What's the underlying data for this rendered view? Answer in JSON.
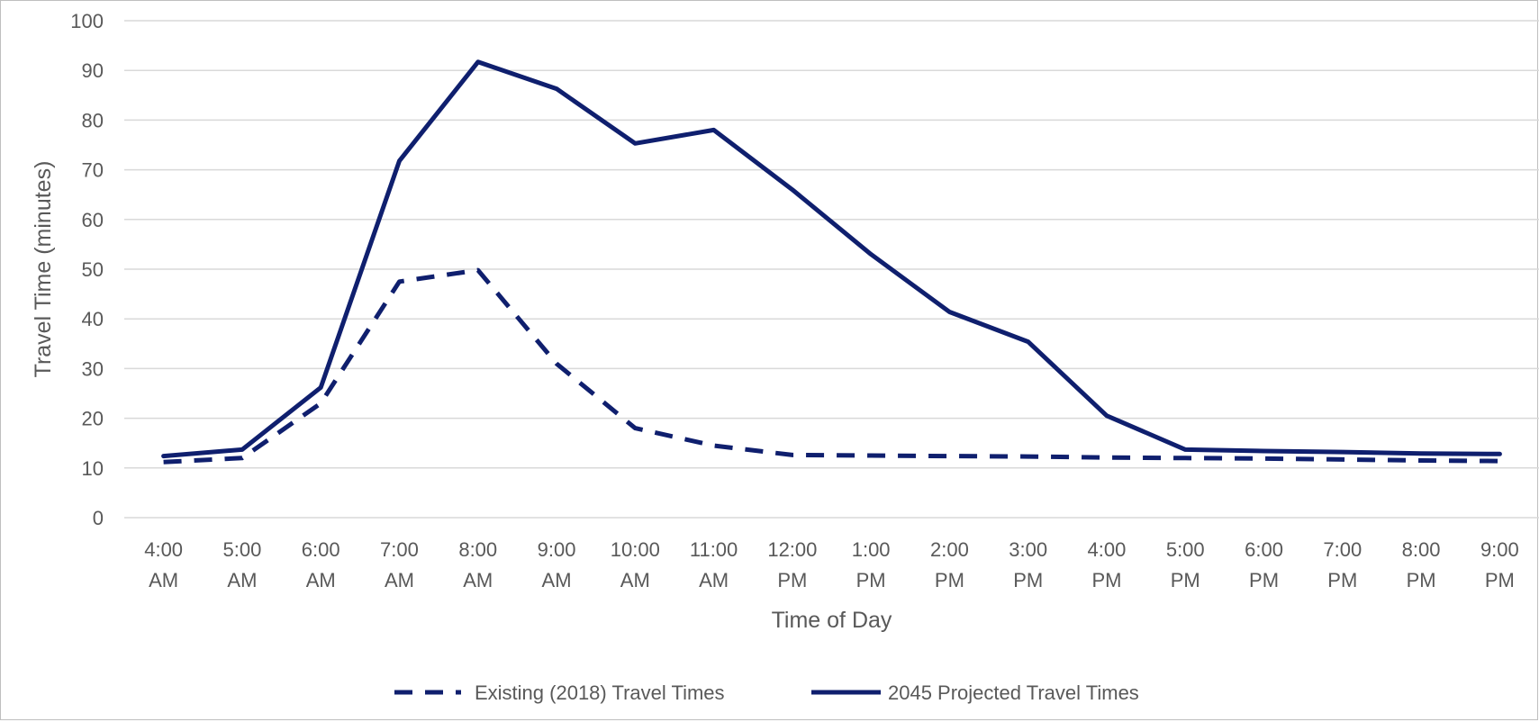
{
  "chart_data": {
    "type": "line",
    "title": "",
    "xlabel": "Time of Day",
    "ylabel": "Travel Time (minutes)",
    "ylim": [
      0,
      100
    ],
    "y_ticks": [
      0,
      10,
      20,
      30,
      40,
      50,
      60,
      70,
      80,
      90,
      100
    ],
    "grid": "horizontal",
    "legend_position": "bottom",
    "categories": [
      [
        "4:00",
        "AM"
      ],
      [
        "5:00",
        "AM"
      ],
      [
        "6:00",
        "AM"
      ],
      [
        "7:00",
        "AM"
      ],
      [
        "8:00",
        "AM"
      ],
      [
        "9:00",
        "AM"
      ],
      [
        "10:00",
        "AM"
      ],
      [
        "11:00",
        "AM"
      ],
      [
        "12:00",
        "PM"
      ],
      [
        "1:00",
        "PM"
      ],
      [
        "2:00",
        "PM"
      ],
      [
        "3:00",
        "PM"
      ],
      [
        "4:00",
        "PM"
      ],
      [
        "5:00",
        "PM"
      ],
      [
        "6:00",
        "PM"
      ],
      [
        "7:00",
        "PM"
      ],
      [
        "8:00",
        "PM"
      ],
      [
        "9:00",
        "PM"
      ]
    ],
    "series": [
      {
        "name": "Existing (2018) Travel Times",
        "style": "dashed",
        "color": "#0f1f6e",
        "values": [
          11.2,
          12.0,
          23.0,
          47.5,
          49.8,
          31.0,
          18.0,
          14.5,
          12.6,
          12.5,
          12.4,
          12.3,
          12.1,
          12.0,
          11.9,
          11.7,
          11.5,
          11.4
        ]
      },
      {
        "name": "2045 Projected Travel Times",
        "style": "solid",
        "color": "#0f1f6e",
        "values": [
          12.4,
          13.7,
          26.2,
          71.8,
          91.7,
          86.3,
          75.3,
          78.0,
          66.0,
          53.0,
          41.4,
          35.4,
          20.5,
          13.7,
          13.4,
          13.2,
          12.9,
          12.8
        ]
      }
    ]
  }
}
